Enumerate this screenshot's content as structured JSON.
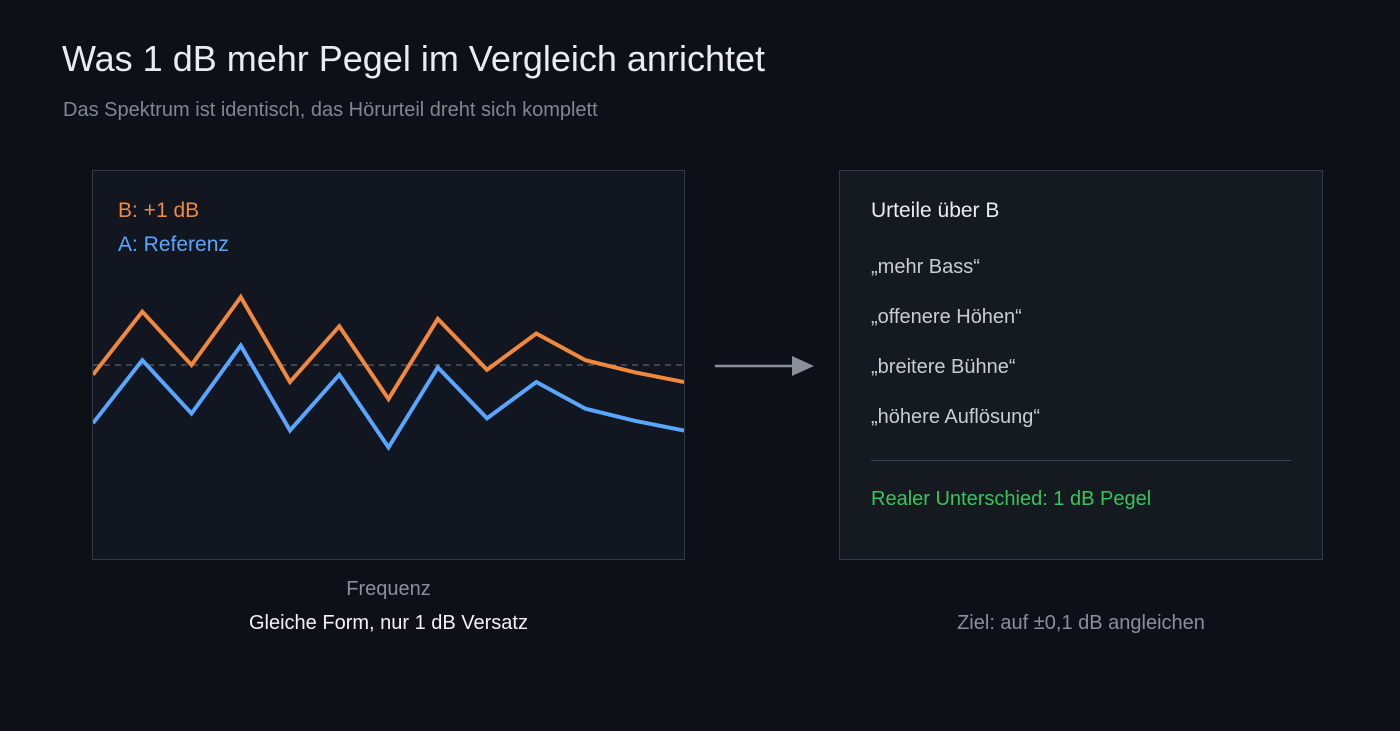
{
  "header": {
    "title": "Was 1 dB mehr Pegel im Vergleich anrichtet",
    "subtitle": "Das Spektrum ist identisch, das Hörurteil dreht sich komplett"
  },
  "chart_data": {
    "type": "line",
    "xlabel": "Frequenz",
    "ylabel": "",
    "offset_db": 1,
    "grid": false,
    "reference_line": "dashed",
    "legend_position": "top-left",
    "x": [
      0,
      1,
      2,
      3,
      4,
      5,
      6,
      7,
      8,
      9,
      10,
      11,
      12
    ],
    "ylim": [
      -4,
      4
    ],
    "series": [
      {
        "name": "B: +1 dB",
        "color": "#f0883e",
        "values": [
          -0.2,
          1.1,
          0.0,
          1.4,
          -0.35,
          0.8,
          -0.7,
          0.95,
          -0.1,
          0.65,
          0.1,
          -0.15,
          -0.35
        ]
      },
      {
        "name": "A: Referenz",
        "color": "#58a6ff",
        "values": [
          -1.2,
          0.1,
          -1.0,
          0.4,
          -1.35,
          -0.2,
          -1.7,
          -0.05,
          -1.1,
          -0.35,
          -0.9,
          -1.15,
          -1.35
        ]
      }
    ]
  },
  "caption_left": "Gleiche Form, nur 1 dB Versatz",
  "judgments": {
    "title": "Urteile über B",
    "items": [
      "„mehr Bass“",
      "„offenere Höhen“",
      "„breitere Bühne“",
      "„höhere Auflösung“"
    ],
    "real_difference": "Realer Unterschied: 1 dB Pegel"
  },
  "caption_right": "Ziel: auf ±0,1 dB angleichen",
  "colors": {
    "accent_orange": "#f0883e",
    "accent_blue": "#58a6ff",
    "accent_green": "#34c759",
    "background": "#0d1017"
  }
}
